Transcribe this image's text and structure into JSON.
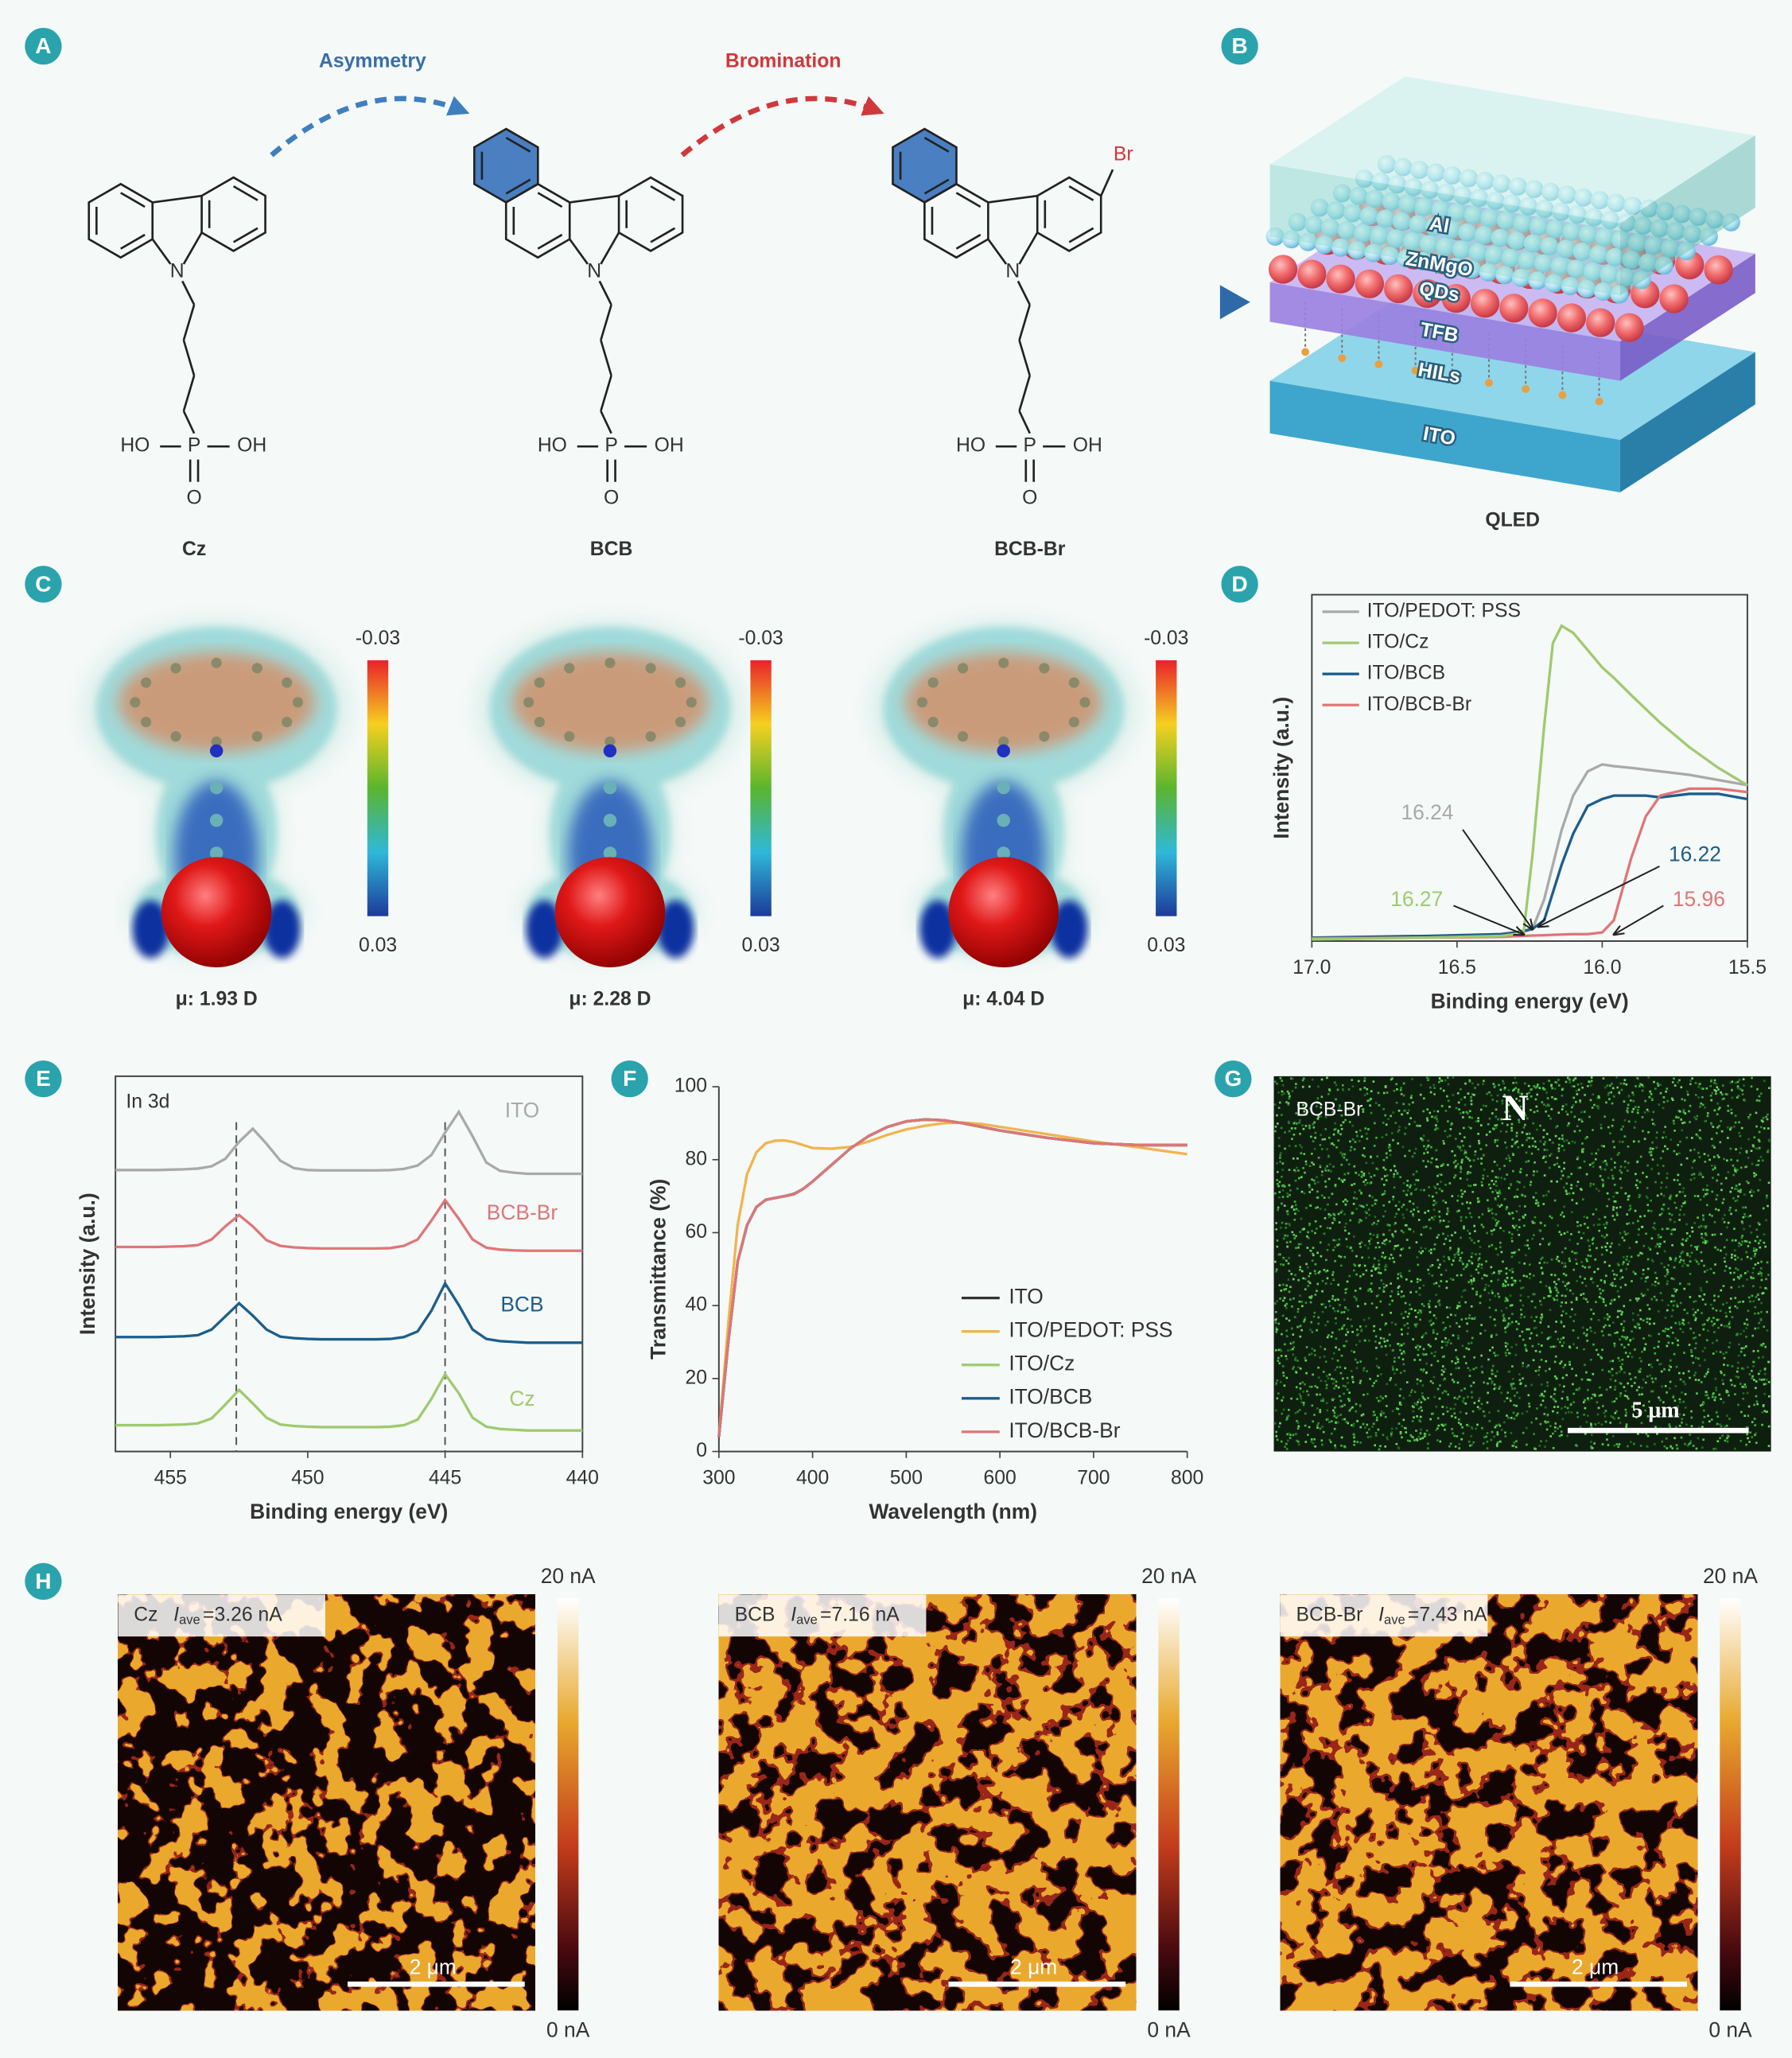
{
  "panel_labels": [
    "A",
    "B",
    "C",
    "D",
    "E",
    "F",
    "G",
    "H"
  ],
  "scheme": {
    "arrows": [
      "Asymmetry",
      "Bromination"
    ],
    "molecules": [
      {
        "name": "Cz",
        "atoms": {
          "n": "N",
          "ho": "HO",
          "p": "P",
          "oh": "OH",
          "o": "O"
        }
      },
      {
        "name": "BCB",
        "atoms": {
          "n": "N",
          "ho": "HO",
          "p": "P",
          "oh": "OH",
          "o": "O"
        }
      },
      {
        "name": "BCB-Br",
        "atoms": {
          "n": "N",
          "ho": "HO",
          "p": "P",
          "oh": "OH",
          "o": "O",
          "br": "Br"
        }
      }
    ]
  },
  "device": {
    "layers": [
      "Al",
      "ZnMgO",
      "QDs",
      "TFB",
      "HILs",
      "ITO"
    ],
    "caption": "QLED"
  },
  "esp": {
    "scale": [
      "-0.03",
      "0.03"
    ],
    "dipoles": [
      "μ: 1.93 D",
      "μ: 2.28 D",
      "μ: 4.04 D"
    ]
  },
  "chart_data": [
    {
      "type": "line",
      "x_label": "Binding energy (eV)",
      "y_label": "Intensity (a.u.)",
      "x": [
        17.0,
        16.6,
        16.35,
        16.3,
        16.27,
        16.24,
        16.2,
        16.17,
        16.14,
        16.1,
        16.05,
        16.0,
        15.96,
        15.9,
        15.85,
        15.8,
        15.7,
        15.6,
        15.5
      ],
      "xlim": [
        17,
        15.5
      ],
      "xticks": [
        {
          "value": 17,
          "label": "17.0"
        },
        16.5,
        {
          "value": 16,
          "label": "16.0"
        },
        15.5
      ],
      "ylim": [
        0,
        100
      ],
      "legend": "upper left",
      "series": [
        {
          "name": "ITO/PEDOT: PSS",
          "color": "#a9a9a9",
          "values": [
            0.8,
            1.2,
            1.8,
            2.2,
            2.6,
            3.5,
            12,
            22,
            32,
            42,
            49,
            51,
            50.5,
            50,
            49.5,
            49,
            48,
            46.5,
            45
          ]
        },
        {
          "name": "ITO/Cz",
          "color": "#9fca6e",
          "values": [
            0.5,
            1,
            1.5,
            2,
            3,
            25,
            62,
            86,
            91,
            89,
            84,
            79,
            76,
            71,
            67,
            63,
            56,
            50,
            45
          ]
        },
        {
          "name": "ITO/BCB",
          "color": "#1b5e8c",
          "values": [
            1,
            1.5,
            2,
            2.5,
            3,
            3.5,
            6,
            14,
            22,
            31,
            39,
            41,
            42,
            42,
            42,
            41.5,
            42.5,
            42.5,
            41
          ]
        },
        {
          "name": "ITO/BCB-Br",
          "color": "#de7677",
          "values": [
            0.8,
            1,
            1.2,
            1.4,
            1.5,
            1.6,
            1.7,
            1.8,
            1.9,
            2,
            2,
            2.5,
            6,
            24,
            36,
            42,
            44,
            44,
            43
          ]
        }
      ],
      "annotations": [
        {
          "value": 16.24,
          "color": "#a9a9a9"
        },
        {
          "value": 16.27,
          "color": "#9fca6e"
        },
        {
          "value": 16.22,
          "color": "#1b5e8c"
        },
        {
          "value": 15.96,
          "color": "#de7677"
        }
      ]
    },
    {
      "type": "line",
      "title": "In 3d",
      "x_label": "Binding energy (eV)",
      "y_label": "Intensity (a.u.)",
      "x": [
        457,
        456.5,
        456,
        455.5,
        455,
        454.5,
        454,
        453.5,
        453,
        452.5,
        452,
        451.5,
        451,
        450.5,
        450,
        449.5,
        449,
        448.5,
        448,
        447.5,
        447,
        446.5,
        446,
        445.5,
        445,
        444.5,
        444,
        443.5,
        443,
        442.5,
        442,
        441.5,
        441,
        440.5,
        440
      ],
      "xlim": [
        457,
        440
      ],
      "xticks": [
        455,
        450,
        445,
        440
      ],
      "ylim": [
        0,
        100
      ],
      "vlines": [
        452.6,
        445
      ],
      "legend": "inline",
      "series": [
        {
          "name": "ITO",
          "color": "#a9a9a9",
          "values": [
            75,
            75,
            75,
            75,
            75.1,
            75.2,
            75.4,
            76,
            78,
            82.5,
            86,
            82,
            77.5,
            75.5,
            75,
            74.9,
            74.9,
            74.9,
            74.9,
            74.9,
            75,
            75.3,
            76.2,
            79,
            85,
            90.5,
            84,
            77,
            74.8,
            74.3,
            74,
            74,
            74,
            74,
            74
          ]
        },
        {
          "name": "BCB-Br",
          "color": "#de7677",
          "values": [
            54.5,
            54.5,
            54.5,
            54.5,
            54.6,
            54.7,
            55,
            56.5,
            60,
            63,
            60,
            56.3,
            54.8,
            54.4,
            54.2,
            54.1,
            54.1,
            54.1,
            54.1,
            54.1,
            54.2,
            54.8,
            56.5,
            61.5,
            67,
            62,
            56.5,
            54.3,
            53.8,
            53.6,
            53.5,
            53.5,
            53.5,
            53.5,
            53.5
          ]
        },
        {
          "name": "BCB",
          "color": "#1b5e8c",
          "values": [
            30.5,
            30.5,
            30.5,
            30.5,
            30.6,
            30.7,
            31,
            32.5,
            36,
            39.5,
            36.2,
            32.5,
            30.6,
            30.2,
            30,
            29.9,
            29.9,
            29.9,
            29.9,
            29.9,
            30,
            30.5,
            32,
            37.5,
            44.8,
            39,
            32.5,
            30,
            29.4,
            29.2,
            29,
            29,
            29,
            29,
            29
          ]
        },
        {
          "name": "Cz",
          "color": "#9fca6e",
          "values": [
            7,
            7,
            7,
            7,
            7.1,
            7.2,
            7.5,
            8.8,
            12.5,
            16.4,
            12.8,
            9,
            7.2,
            6.8,
            6.6,
            6.5,
            6.5,
            6.5,
            6.5,
            6.5,
            6.6,
            7,
            8.5,
            14,
            20.6,
            15.5,
            9,
            6.6,
            6,
            5.8,
            5.6,
            5.6,
            5.6,
            5.6,
            5.6
          ]
        }
      ]
    },
    {
      "type": "line",
      "x_label": "Wavelength (nm)",
      "y_label": "Transmittance (%)",
      "x": [
        300,
        310,
        320,
        330,
        340,
        350,
        360,
        370,
        380,
        390,
        400,
        420,
        440,
        460,
        480,
        500,
        520,
        540,
        560,
        580,
        600,
        650,
        700,
        750,
        800
      ],
      "xlim": [
        300,
        800
      ],
      "xticks": [
        300,
        400,
        500,
        600,
        700,
        800
      ],
      "ylim": [
        0,
        100
      ],
      "yticks": [
        0,
        20,
        40,
        60,
        80,
        100
      ],
      "legend": "lower right",
      "series": [
        {
          "name": "ITO",
          "color": "#333333",
          "values": [
            4,
            30,
            52,
            62,
            67,
            69,
            69.5,
            70,
            70.6,
            72,
            74,
            78.5,
            83,
            86.5,
            89,
            90.5,
            91,
            90.8,
            90,
            89,
            88,
            86,
            84.5,
            84,
            84
          ]
        },
        {
          "name": "ITO/PEDOT: PSS",
          "color": "#f1b44f",
          "values": [
            4,
            35,
            62,
            76,
            82,
            84.5,
            85.2,
            85.3,
            84.8,
            84,
            83.2,
            83,
            83.5,
            85,
            86.8,
            88.3,
            89.3,
            90,
            90.2,
            89.8,
            89,
            87,
            85,
            83.3,
            81.5
          ]
        },
        {
          "name": "ITO/Cz",
          "color": "#9fca6e",
          "values": [
            4,
            30,
            52,
            62,
            67,
            69,
            69.5,
            70,
            70.5,
            72,
            74,
            78.5,
            83,
            86.5,
            89,
            90.5,
            91,
            90.8,
            90,
            89,
            88,
            86,
            84.5,
            84,
            84
          ]
        },
        {
          "name": "ITO/BCB",
          "color": "#1b5e8c",
          "values": [
            4,
            30,
            52,
            62,
            67,
            69,
            69.5,
            70,
            70.5,
            72,
            74,
            78.5,
            83,
            86.5,
            89,
            90.5,
            91,
            90.8,
            90,
            89,
            88,
            86,
            84.5,
            84,
            84
          ]
        },
        {
          "name": "ITO/BCB-Br",
          "color": "#de7677",
          "values": [
            4,
            30,
            52,
            62,
            67,
            69,
            69.5,
            70,
            70.5,
            72,
            74,
            78.5,
            83,
            86.5,
            89,
            90.5,
            91,
            90.8,
            90,
            89,
            88,
            86,
            84.5,
            84,
            84
          ]
        }
      ]
    }
  ],
  "eds": {
    "sample": "BCB-Br",
    "element": "N",
    "scale_bar": "5 μm"
  },
  "cafm": {
    "colorbar": [
      "20 nA",
      "0 nA"
    ],
    "scale_bar": "2 μm",
    "maps": [
      {
        "sample": "Cz",
        "symbol": "I",
        "subscript": "ave",
        "value": "=3.26 nA"
      },
      {
        "sample": "BCB",
        "symbol": "I",
        "subscript": "ave",
        "value": "=7.16 nA"
      },
      {
        "sample": "BCB-Br",
        "symbol": "I",
        "subscript": "ave",
        "value": "=7.43 nA"
      }
    ]
  }
}
